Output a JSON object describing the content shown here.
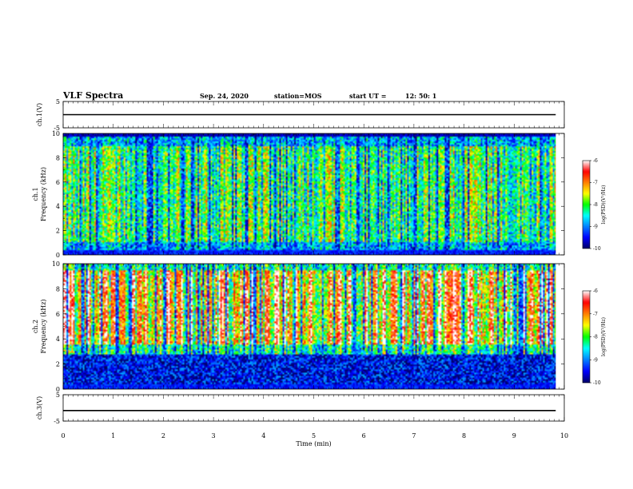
{
  "header": {
    "title": "VLF Spectra",
    "date": "Sep. 24, 2020",
    "station": "station=MOS",
    "start_label": "start  UT  =",
    "start_time": "12: 50: 1"
  },
  "chart_data": [
    {
      "type": "line",
      "name": "ch1-waveform",
      "ylabel": "ch.1(V)",
      "ylim": [
        -5,
        5
      ],
      "yticks": [
        "5",
        "-5"
      ],
      "x": [
        0,
        9.83
      ],
      "y": [
        0,
        0
      ],
      "xlim": [
        0,
        10
      ]
    },
    {
      "type": "heatmap",
      "name": "ch1-spectrogram",
      "ylabel": "ch.1\nFrequency (kHz)",
      "ylim": [
        0,
        10
      ],
      "yticks": [
        "0",
        "2",
        "4",
        "6",
        "8",
        "10"
      ],
      "xlim": [
        0,
        10
      ],
      "data_end_min": 9.83,
      "colorbar": {
        "label": "log(PSD)(V²/Hz)",
        "range": [
          -10,
          -6
        ],
        "ticks": [
          "-6",
          "-7",
          "-8",
          "-9",
          "-10"
        ]
      },
      "band_kHz": [
        1.0,
        9.0
      ],
      "typical_level_in_band": -8.0
    },
    {
      "type": "heatmap",
      "name": "ch2-spectrogram",
      "ylabel": "ch.2\nFrequency (kHz)",
      "ylim": [
        0,
        10
      ],
      "yticks": [
        "0",
        "2",
        "4",
        "6",
        "8",
        "10"
      ],
      "xlim": [
        0,
        10
      ],
      "data_end_min": 9.83,
      "colorbar": {
        "label": "log(PSD)(V²/Hz)",
        "range": [
          -10,
          -6
        ],
        "ticks": [
          "-6",
          "-7",
          "-8",
          "-9",
          "-10"
        ]
      },
      "band_kHz": [
        3.5,
        9.5
      ],
      "typical_level_in_band": -6.8
    },
    {
      "type": "line",
      "name": "ch3-waveform",
      "ylabel": "ch.3(V)",
      "ylim": [
        -5,
        5
      ],
      "yticks": [
        "5",
        "-5"
      ],
      "x": [
        0,
        9.83
      ],
      "y": [
        -1,
        -1
      ],
      "xlim": [
        0,
        10
      ]
    }
  ],
  "xaxis": {
    "label": "Time  (min)",
    "ticks": [
      "0",
      "1",
      "2",
      "3",
      "4",
      "5",
      "6",
      "7",
      "8",
      "9",
      "10"
    ]
  },
  "colors": {
    "background": "#ffffff",
    "axis": "#000000",
    "colormap": [
      "#000066",
      "#0000ff",
      "#0080ff",
      "#00ffff",
      "#00ff00",
      "#ffff00",
      "#ff8000",
      "#ff0000",
      "#ffffff"
    ]
  }
}
